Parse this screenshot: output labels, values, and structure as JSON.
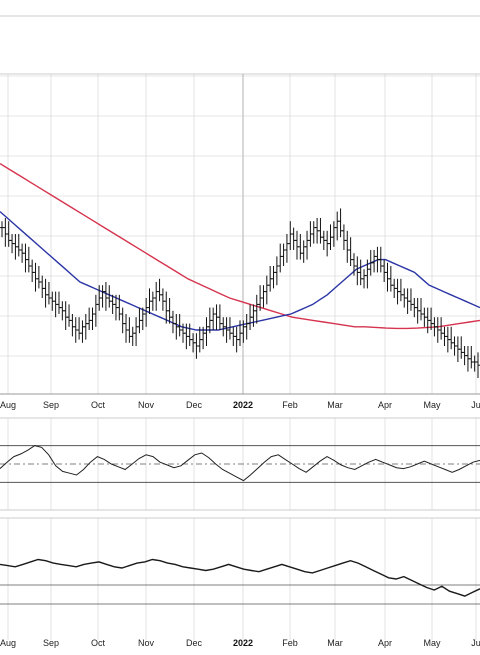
{
  "chart_data": [
    {
      "type": "line",
      "panel": "price",
      "x_ticks": [
        "Aug",
        "Sep",
        "Oct",
        "Nov",
        "Dec",
        "2022",
        "Feb",
        "Mar",
        "Apr",
        "May",
        "Ju"
      ],
      "bold_ticks": [
        "2022"
      ],
      "ohlc_close": [
        52,
        50,
        48,
        47,
        46,
        45,
        44,
        42,
        40,
        38,
        36,
        35,
        33,
        31,
        30,
        29,
        28,
        27,
        26,
        24,
        23,
        21,
        20,
        19,
        21,
        22,
        23,
        25,
        28,
        30,
        32,
        30,
        29,
        28,
        27,
        25,
        22,
        20,
        18,
        19,
        21,
        23,
        25,
        27,
        29,
        30,
        32,
        31,
        29,
        26,
        24,
        22,
        21,
        20,
        19,
        18,
        17,
        16,
        15,
        17,
        19,
        21,
        23,
        25,
        24,
        22,
        21,
        20,
        19,
        18,
        17,
        19,
        21,
        22,
        24,
        26,
        28,
        30,
        32,
        34,
        36,
        38,
        40,
        43,
        45,
        47,
        50,
        48,
        46,
        44,
        46,
        48,
        50,
        52,
        51,
        49,
        48,
        47,
        49,
        52,
        54,
        51,
        48,
        45,
        42,
        40,
        38,
        36,
        37,
        39,
        41,
        43,
        42,
        40,
        38,
        36,
        34,
        33,
        32,
        31,
        30,
        29,
        28,
        27,
        26,
        25,
        24,
        23,
        22,
        21,
        20,
        19,
        18,
        17,
        16,
        15,
        14,
        13,
        12,
        11,
        10,
        10,
        9
      ],
      "sma_50": [
        57,
        55,
        53,
        51,
        49,
        47,
        45,
        43,
        41,
        39,
        37,
        35,
        34,
        33,
        32,
        31,
        30,
        29,
        28,
        27,
        26,
        25,
        24,
        23,
        22,
        21,
        20.5,
        20,
        20,
        20,
        20,
        20.5,
        21,
        21.5,
        22,
        22.5,
        23,
        23.5,
        24,
        24.5,
        25,
        26,
        27,
        28,
        29.5,
        31,
        33,
        35,
        37,
        39,
        40,
        41,
        42,
        42,
        41,
        40,
        39,
        38,
        36,
        34,
        33,
        32,
        31,
        30,
        29,
        28,
        27
      ],
      "sma_200": [
        72,
        70,
        68,
        66,
        64,
        62,
        60,
        58,
        56,
        54,
        52,
        50,
        48,
        46,
        44,
        42,
        40,
        38,
        36,
        34.5,
        33,
        31.5,
        30,
        29,
        28,
        27,
        26,
        25,
        24,
        23.5,
        23,
        22.5,
        22,
        21.5,
        21,
        21,
        20.8,
        20.6,
        20.5,
        20.5,
        20.6,
        20.8,
        21,
        21.5,
        22,
        22.5,
        23
      ],
      "colors": {
        "sma_50": "#2b35a5",
        "sma_200": "#d6334e",
        "bars": "#111111",
        "grid": "#d0d0d0"
      }
    },
    {
      "type": "line",
      "panel": "oscillator",
      "values": [
        45,
        52,
        58,
        61,
        65,
        70,
        68,
        60,
        48,
        42,
        40,
        38,
        44,
        52,
        58,
        55,
        50,
        47,
        44,
        50,
        56,
        60,
        58,
        52,
        49,
        46,
        48,
        54,
        60,
        62,
        57,
        50,
        44,
        40,
        36,
        32,
        38,
        45,
        52,
        58,
        60,
        55,
        50,
        45,
        41,
        47,
        53,
        58,
        54,
        49,
        46,
        44,
        48,
        52,
        55,
        52,
        49,
        46,
        45,
        47,
        50,
        53,
        50,
        47,
        44,
        41,
        44,
        48,
        52,
        54
      ],
      "levels": [
        70,
        50,
        30
      ],
      "overbought_fill": "#4f8a4f"
    },
    {
      "type": "line",
      "panel": "lower_line",
      "values": [
        62,
        61,
        60,
        62,
        64,
        66,
        65,
        63,
        62,
        61,
        60,
        62,
        63,
        64,
        62,
        60,
        59,
        61,
        63,
        64,
        66,
        65,
        63,
        62,
        60,
        59,
        58,
        57,
        58,
        60,
        62,
        60,
        58,
        57,
        56,
        58,
        60,
        62,
        60,
        58,
        56,
        55,
        57,
        59,
        61,
        63,
        65,
        63,
        60,
        57,
        54,
        51,
        50,
        52,
        49,
        46,
        43,
        41,
        44,
        40,
        38,
        36,
        39,
        42
      ],
      "colors": {
        "line": "#1a1a1a"
      }
    }
  ]
}
